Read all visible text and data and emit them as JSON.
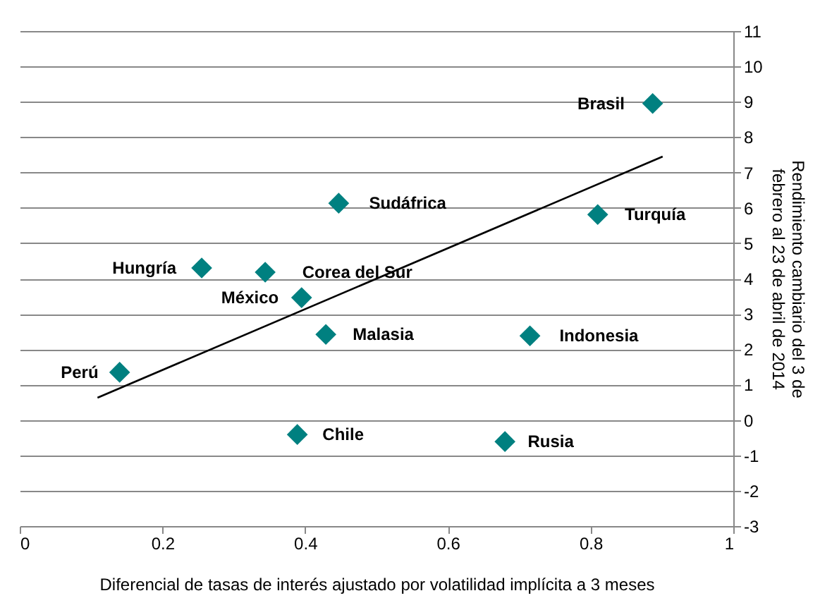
{
  "chart_data": {
    "type": "scatter",
    "xlabel": "Diferencial de tasas de interés ajustado por volatilidad implícita a 3 meses",
    "ylabel": "Rendimiento cambiario del 3 de febrero al 23 de abril de 2014",
    "xlim": [
      0,
      1
    ],
    "xticks": [
      0,
      0.2,
      0.4,
      0.6,
      0.8,
      1
    ],
    "ylim": [
      -3,
      11
    ],
    "yticks": [
      -3,
      -2,
      -1,
      0,
      1,
      2,
      3,
      4,
      5,
      6,
      7,
      8,
      9,
      10,
      11
    ],
    "grid": "y",
    "series": [
      {
        "color": "#008080",
        "marker": "diamond",
        "x": [
          0.887,
          0.447,
          0.81,
          0.255,
          0.344,
          0.395,
          0.429,
          0.715,
          0.14,
          0.389,
          0.68
        ],
        "values": [
          8.95,
          6.13,
          5.81,
          4.3,
          4.18,
          3.46,
          2.42,
          2.38,
          1.35,
          -0.41,
          -0.61
        ]
      },
      {
        "type": "line",
        "color": "#000000",
        "x": [
          0.109,
          0.901
        ],
        "values": [
          0.63,
          7.45
        ]
      }
    ],
    "annotations": [
      {
        "text": "Brasil",
        "x": 0.887,
        "y": 8.95
      },
      {
        "text": "Sudáfrica",
        "x": 0.447,
        "y": 6.13
      },
      {
        "text": "Turquía",
        "x": 0.81,
        "y": 5.81
      },
      {
        "text": "Hungría",
        "x": 0.255,
        "y": 4.3
      },
      {
        "text": "Corea del Sur",
        "x": 0.344,
        "y": 4.18
      },
      {
        "text": "México",
        "x": 0.395,
        "y": 3.46
      },
      {
        "text": "Malasia",
        "x": 0.429,
        "y": 2.42
      },
      {
        "text": "Indonesia",
        "x": 0.715,
        "y": 2.38
      },
      {
        "text": "Perú",
        "x": 0.14,
        "y": 1.35
      },
      {
        "text": "Chile",
        "x": 0.389,
        "y": -0.41
      },
      {
        "text": "Rusia",
        "x": 0.68,
        "y": -0.61
      }
    ]
  }
}
